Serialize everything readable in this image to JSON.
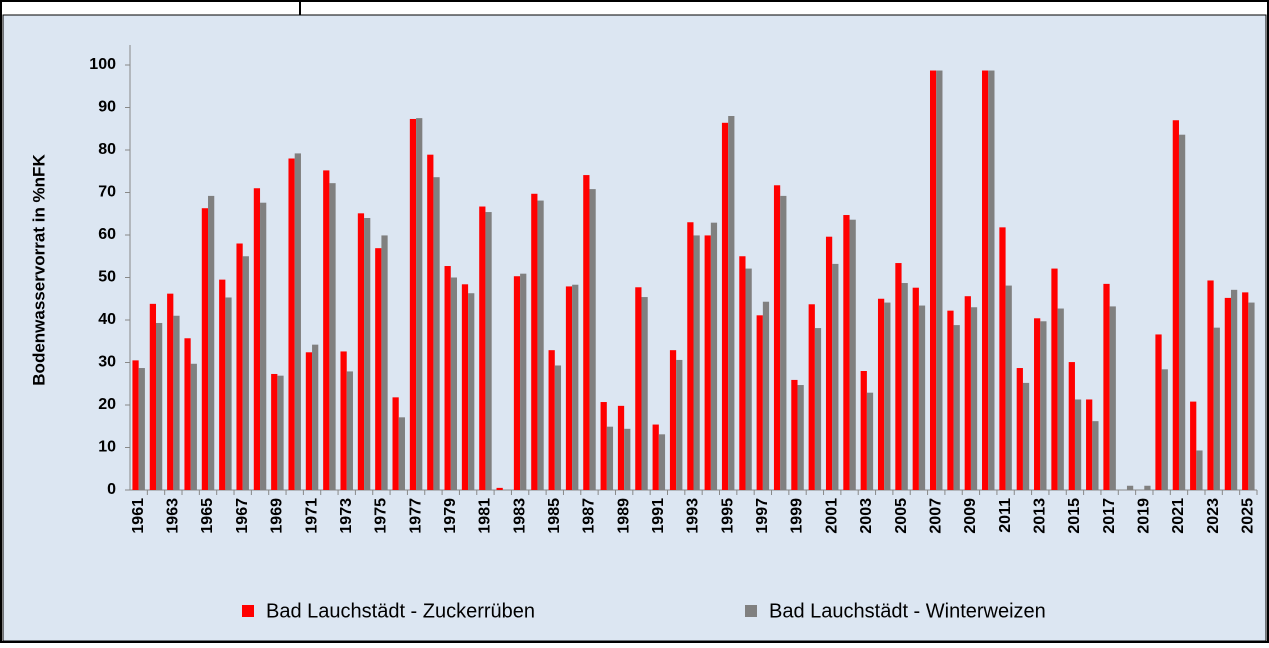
{
  "chart_data": {
    "type": "bar",
    "y_label": "Bodenwasservorrat in %nFK",
    "categories": [
      "1961",
      null,
      "1963",
      null,
      "1965",
      null,
      "1967",
      null,
      "1969",
      null,
      "1971",
      null,
      "1973",
      null,
      "1975",
      null,
      "1977",
      null,
      "1979",
      null,
      "1981",
      null,
      "1983",
      null,
      "1985",
      null,
      "1987",
      null,
      "1989",
      null,
      "1991",
      null,
      "1993",
      null,
      "1995",
      null,
      "1997",
      null,
      "1999",
      null,
      "2001",
      null,
      "2003",
      null,
      "2005",
      null,
      "2007",
      null,
      "2009",
      null,
      "2011",
      null,
      "2013",
      null,
      "2015",
      null,
      "2017",
      null,
      "2019",
      null,
      "2021",
      null,
      "2023",
      null,
      "2025"
    ],
    "series": [
      {
        "name": "Bad Lauchstädt - Zuckerrüben",
        "color": "#ff0000",
        "values": [
          30.5,
          43.8,
          46.2,
          35.7,
          66.3,
          49.5,
          58.0,
          71.0,
          27.3,
          78.0,
          32.4,
          75.2,
          32.6,
          65.1,
          56.9,
          21.8,
          87.3,
          78.9,
          52.7,
          48.4,
          66.7,
          0.5,
          50.3,
          69.7,
          32.9,
          47.9,
          74.1,
          20.7,
          19.8,
          47.7,
          15.4,
          32.9,
          63.0,
          59.9,
          86.4,
          55.0,
          41.1,
          71.7,
          25.9,
          43.7,
          59.6,
          64.7,
          28.0,
          45.0,
          53.4,
          47.6,
          98.7,
          42.2,
          45.6,
          98.7,
          61.8,
          28.7,
          40.4,
          52.1,
          30.1,
          21.3,
          48.5,
          null,
          null,
          36.6,
          87.0,
          20.8,
          49.3,
          45.2,
          46.5
        ]
      },
      {
        "name": "Bad Lauchstädt - Winterweizen",
        "color": "#808080",
        "values": [
          28.7,
          39.3,
          41.0,
          29.7,
          69.2,
          45.3,
          55.0,
          67.6,
          26.9,
          79.2,
          34.2,
          72.2,
          27.9,
          64.0,
          59.9,
          17.1,
          87.5,
          73.6,
          50.0,
          46.3,
          65.4,
          0,
          50.9,
          68.1,
          29.3,
          48.3,
          70.8,
          14.9,
          14.4,
          45.4,
          13.1,
          30.6,
          59.9,
          62.9,
          88.0,
          52.1,
          44.3,
          69.2,
          24.7,
          38.1,
          53.2,
          63.6,
          22.9,
          44.1,
          48.7,
          43.4,
          98.7,
          38.8,
          43.0,
          98.7,
          48.1,
          25.2,
          39.7,
          42.7,
          21.3,
          16.2,
          43.2,
          1.0,
          1.0,
          28.4,
          83.6,
          9.3,
          38.2,
          47.1,
          44.1
        ]
      }
    ],
    "ylim": [
      0,
      100
    ],
    "yticks": [
      0,
      10,
      20,
      30,
      40,
      50,
      60,
      70,
      80,
      90,
      100
    ],
    "grid": false,
    "legend": "bottom",
    "background": "#dce6f2"
  }
}
